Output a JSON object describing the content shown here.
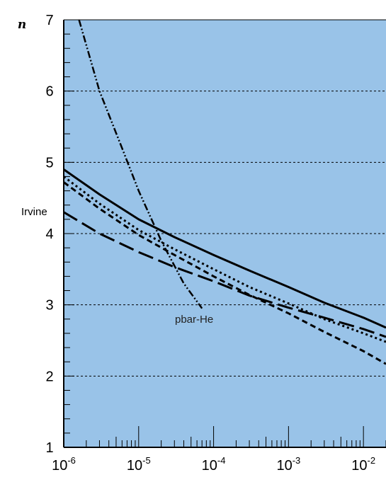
{
  "chart_data": {
    "type": "line",
    "title": "",
    "xlabel": "",
    "ylabel": "n",
    "x_scale": "log",
    "xlim": [
      1e-06,
      0.02
    ],
    "ylim": [
      1,
      7
    ],
    "grid": "horizontal dotted at y = 2, 3, 4, 5, 6",
    "background_color": "#99c3e8",
    "x_tick_labels": [
      {
        "base": "10",
        "exp": "-6"
      },
      {
        "base": "10",
        "exp": "-5"
      },
      {
        "base": "10",
        "exp": "-4"
      },
      {
        "base": "10",
        "exp": "-3"
      },
      {
        "base": "10",
        "exp": "-2"
      }
    ],
    "y_tick_labels": [
      "1",
      "2",
      "3",
      "4",
      "5",
      "6",
      "7"
    ],
    "annotations": [
      {
        "text": "Irvine",
        "near": "left edge, n ≈ 4.3"
      },
      {
        "text": "pbar-He",
        "near": "x ≈ 1e-4, n ≈ 2.8"
      }
    ],
    "series": [
      {
        "style": "solid",
        "x": [
          1e-06,
          3e-06,
          1e-05,
          3e-05,
          0.0001,
          0.0003,
          0.001,
          0.003,
          0.01,
          0.02
        ],
        "y": [
          4.9,
          4.55,
          4.2,
          3.95,
          3.7,
          3.48,
          3.25,
          3.03,
          2.82,
          2.68
        ]
      },
      {
        "style": "dotted",
        "x": [
          1e-06,
          3e-06,
          1e-05,
          3e-05,
          0.0001,
          0.0003,
          0.001,
          0.003,
          0.01,
          0.02
        ],
        "y": [
          4.8,
          4.42,
          4.05,
          3.78,
          3.5,
          3.25,
          3.02,
          2.8,
          2.6,
          2.48
        ]
      },
      {
        "style": "short-dash",
        "x": [
          1e-06,
          3e-06,
          1e-05,
          3e-05,
          0.0001,
          0.0003,
          0.001,
          0.003,
          0.01,
          0.02
        ],
        "y": [
          4.72,
          4.35,
          3.98,
          3.7,
          3.4,
          3.14,
          2.88,
          2.62,
          2.35,
          2.17
        ]
      },
      {
        "style": "long-dash",
        "x": [
          1e-06,
          3e-06,
          1e-05,
          3e-05,
          0.0001,
          0.0003,
          0.001,
          0.003,
          0.01,
          0.02
        ],
        "y": [
          4.3,
          4.0,
          3.74,
          3.53,
          3.33,
          3.13,
          2.96,
          2.82,
          2.66,
          2.55
        ]
      },
      {
        "style": "dash-dot",
        "x": [
          1.6e-06,
          3e-06,
          6e-06,
          1e-05,
          2e-05,
          4e-05,
          7e-05
        ],
        "y": [
          7.0,
          6.0,
          5.2,
          4.6,
          3.9,
          3.3,
          2.95
        ]
      }
    ]
  }
}
